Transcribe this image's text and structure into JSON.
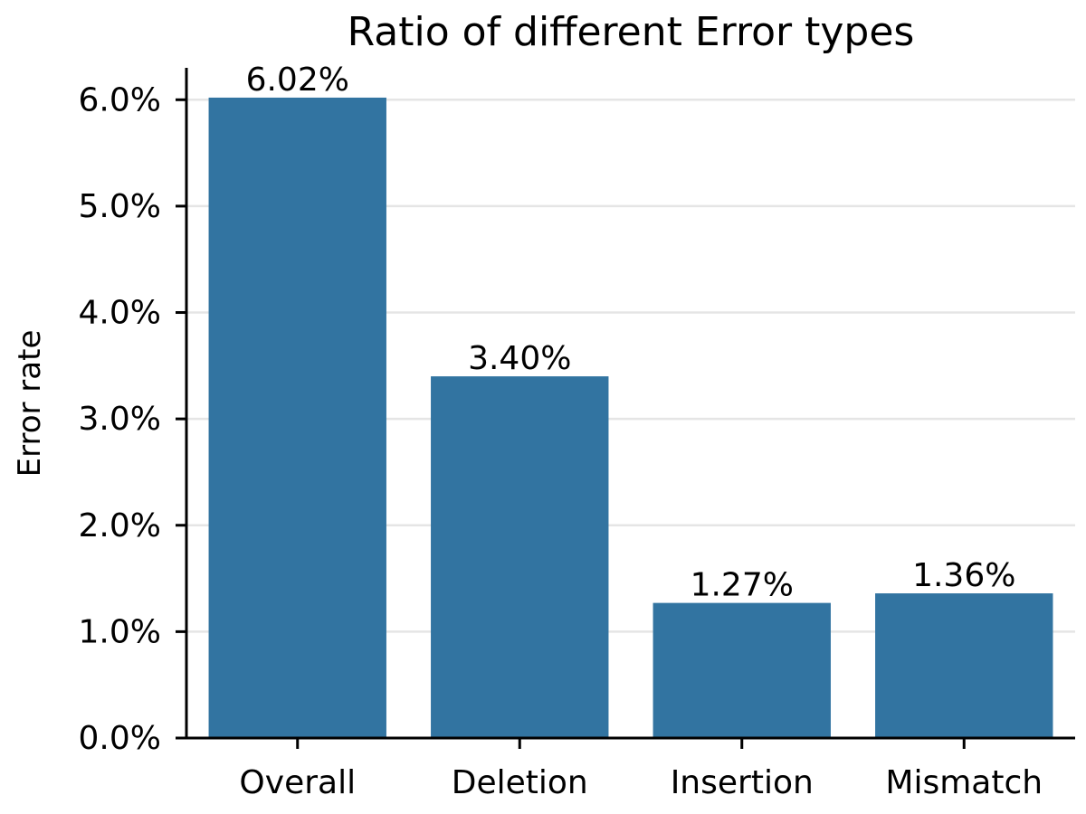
{
  "chart_data": {
    "type": "bar",
    "title": "Ratio of different Error types",
    "xlabel": "",
    "ylabel": "Error rate",
    "categories": [
      "Overall",
      "Deletion",
      "Insertion",
      "Mismatch"
    ],
    "values": [
      6.02,
      3.4,
      1.27,
      1.36
    ],
    "value_labels": [
      "6.02%",
      "3.40%",
      "1.27%",
      "1.36%"
    ],
    "ylim": [
      0,
      6.3
    ],
    "yticks": [
      0,
      1,
      2,
      3,
      4,
      5,
      6
    ],
    "ytick_labels": [
      "0.0%",
      "1.0%",
      "2.0%",
      "3.0%",
      "4.0%",
      "5.0%",
      "6.0%"
    ],
    "grid": "horizontal",
    "legend": "none",
    "colors": {
      "bar": "#3274A1",
      "grid": "#E5E5E5",
      "axis": "#000000"
    }
  }
}
